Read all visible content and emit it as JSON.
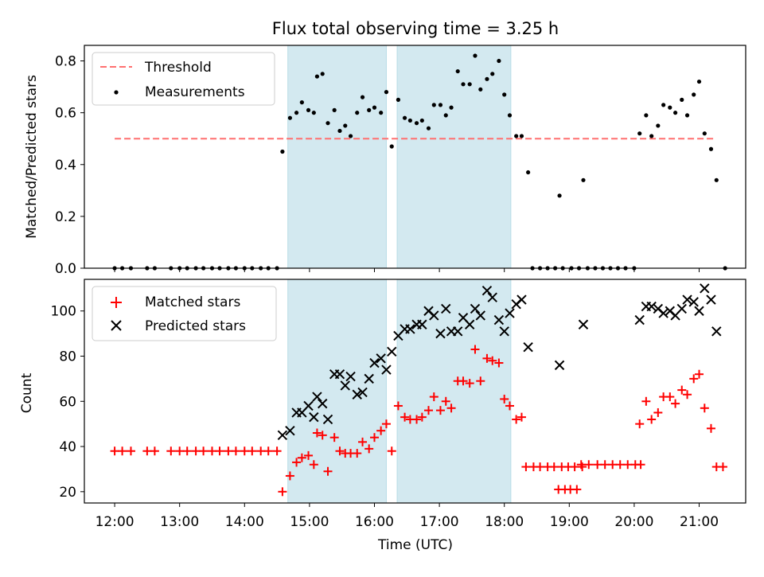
{
  "chart_data": [
    {
      "type": "scatter",
      "panel": "top",
      "title": "Flux total observing time = 3.25 h",
      "ylabel": "Matched/Predicted stars",
      "xlabel": "",
      "xlim": [
        "11:32",
        "21:43"
      ],
      "ylim": [
        0,
        0.86
      ],
      "yticks": [
        0.0,
        0.2,
        0.4,
        0.6,
        0.8
      ],
      "ytick_labels": [
        "0.0",
        "0.2",
        "0.4",
        "0.6",
        "0.8"
      ],
      "shaded_intervals": [
        [
          "14:40",
          "16:11"
        ],
        [
          "16:21",
          "18:06"
        ]
      ],
      "shade_color": "#d3e9f0",
      "legend": {
        "placement": "upper-left",
        "entries": [
          "Threshold",
          "Measurements"
        ]
      },
      "series": [
        {
          "name": "Threshold",
          "style": "dashed-line",
          "color": "#ff7070",
          "points": [
            [
              "12:00",
              0.5
            ],
            [
              "21:15",
              0.5
            ]
          ]
        },
        {
          "name": "Measurements",
          "style": "dot",
          "color": "#000000",
          "points": [
            [
              "12:00",
              0.0
            ],
            [
              "12:07",
              0.0
            ],
            [
              "12:15",
              0.0
            ],
            [
              "12:30",
              0.0
            ],
            [
              "12:37",
              0.0
            ],
            [
              "12:52",
              0.0
            ],
            [
              "13:00",
              0.0
            ],
            [
              "13:07",
              0.0
            ],
            [
              "13:15",
              0.0
            ],
            [
              "13:22",
              0.0
            ],
            [
              "13:30",
              0.0
            ],
            [
              "13:37",
              0.0
            ],
            [
              "13:45",
              0.0
            ],
            [
              "13:52",
              0.0
            ],
            [
              "14:00",
              0.0
            ],
            [
              "14:07",
              0.0
            ],
            [
              "14:15",
              0.0
            ],
            [
              "14:22",
              0.0
            ],
            [
              "14:30",
              0.0
            ],
            [
              "14:35",
              0.45
            ],
            [
              "14:42",
              0.58
            ],
            [
              "14:48",
              0.6
            ],
            [
              "14:53",
              0.64
            ],
            [
              "14:59",
              0.61
            ],
            [
              "15:04",
              0.6
            ],
            [
              "15:07",
              0.74
            ],
            [
              "15:12",
              0.75
            ],
            [
              "15:17",
              0.56
            ],
            [
              "15:23",
              0.61
            ],
            [
              "15:28",
              0.53
            ],
            [
              "15:33",
              0.55
            ],
            [
              "15:38",
              0.51
            ],
            [
              "15:44",
              0.6
            ],
            [
              "15:49",
              0.66
            ],
            [
              "15:55",
              0.61
            ],
            [
              "16:00",
              0.62
            ],
            [
              "16:06",
              0.6
            ],
            [
              "16:11",
              0.68
            ],
            [
              "16:16",
              0.47
            ],
            [
              "16:22",
              0.65
            ],
            [
              "16:28",
              0.58
            ],
            [
              "16:33",
              0.57
            ],
            [
              "16:39",
              0.56
            ],
            [
              "16:44",
              0.57
            ],
            [
              "16:50",
              0.54
            ],
            [
              "16:55",
              0.63
            ],
            [
              "17:01",
              0.63
            ],
            [
              "17:06",
              0.59
            ],
            [
              "17:11",
              0.62
            ],
            [
              "17:17",
              0.76
            ],
            [
              "17:22",
              0.71
            ],
            [
              "17:28",
              0.71
            ],
            [
              "17:33",
              0.82
            ],
            [
              "17:38",
              0.69
            ],
            [
              "17:44",
              0.73
            ],
            [
              "17:49",
              0.75
            ],
            [
              "17:55",
              0.8
            ],
            [
              "18:00",
              0.67
            ],
            [
              "18:05",
              0.59
            ],
            [
              "18:11",
              0.51
            ],
            [
              "18:16",
              0.51
            ],
            [
              "18:22",
              0.37
            ],
            [
              "18:26",
              0.0
            ],
            [
              "18:33",
              0.0
            ],
            [
              "18:40",
              0.0
            ],
            [
              "18:47",
              0.0
            ],
            [
              "18:54",
              0.0
            ],
            [
              "18:51",
              0.28
            ],
            [
              "19:02",
              0.0
            ],
            [
              "19:09",
              0.0
            ],
            [
              "19:17",
              0.0
            ],
            [
              "19:24",
              0.0
            ],
            [
              "19:31",
              0.0
            ],
            [
              "19:38",
              0.0
            ],
            [
              "19:45",
              0.0
            ],
            [
              "19:52",
              0.0
            ],
            [
              "20:00",
              0.0
            ],
            [
              "19:13",
              0.34
            ],
            [
              "20:05",
              0.52
            ],
            [
              "20:11",
              0.59
            ],
            [
              "20:16",
              0.51
            ],
            [
              "20:22",
              0.55
            ],
            [
              "20:27",
              0.63
            ],
            [
              "20:33",
              0.62
            ],
            [
              "20:38",
              0.6
            ],
            [
              "20:44",
              0.65
            ],
            [
              "20:49",
              0.59
            ],
            [
              "20:55",
              0.67
            ],
            [
              "21:00",
              0.72
            ],
            [
              "21:05",
              0.52
            ],
            [
              "21:11",
              0.46
            ],
            [
              "21:16",
              0.34
            ],
            [
              "21:24",
              0.0
            ]
          ]
        }
      ]
    },
    {
      "type": "scatter",
      "panel": "bottom",
      "title": "",
      "xlabel": "Time (UTC)",
      "ylabel": "Count",
      "xlim": [
        "11:32",
        "21:43"
      ],
      "ylim": [
        15,
        114
      ],
      "xticks": [
        "12:00",
        "13:00",
        "14:00",
        "15:00",
        "16:00",
        "17:00",
        "18:00",
        "19:00",
        "20:00",
        "21:00"
      ],
      "yticks": [
        20,
        40,
        60,
        80,
        100
      ],
      "shaded_intervals": [
        [
          "14:40",
          "16:11"
        ],
        [
          "16:21",
          "18:06"
        ]
      ],
      "shade_color": "#d3e9f0",
      "legend": {
        "placement": "upper-left",
        "entries": [
          "Matched stars",
          "Predicted stars"
        ]
      },
      "series": [
        {
          "name": "Matched stars",
          "marker": "plus",
          "color": "#ff0000",
          "points": [
            [
              "12:00",
              38
            ],
            [
              "12:07",
              38
            ],
            [
              "12:15",
              38
            ],
            [
              "12:30",
              38
            ],
            [
              "12:37",
              38
            ],
            [
              "12:52",
              38
            ],
            [
              "13:00",
              38
            ],
            [
              "13:07",
              38
            ],
            [
              "13:15",
              38
            ],
            [
              "13:22",
              38
            ],
            [
              "13:30",
              38
            ],
            [
              "13:37",
              38
            ],
            [
              "13:45",
              38
            ],
            [
              "13:52",
              38
            ],
            [
              "14:00",
              38
            ],
            [
              "14:07",
              38
            ],
            [
              "14:15",
              38
            ],
            [
              "14:22",
              38
            ],
            [
              "14:30",
              38
            ],
            [
              "14:35",
              20
            ],
            [
              "14:42",
              27
            ],
            [
              "14:48",
              33
            ],
            [
              "14:53",
              35
            ],
            [
              "14:59",
              36
            ],
            [
              "15:04",
              32
            ],
            [
              "15:07",
              46
            ],
            [
              "15:12",
              45
            ],
            [
              "15:17",
              29
            ],
            [
              "15:23",
              44
            ],
            [
              "15:28",
              38
            ],
            [
              "15:33",
              37
            ],
            [
              "15:38",
              37
            ],
            [
              "15:44",
              37
            ],
            [
              "15:49",
              42
            ],
            [
              "15:55",
              39
            ],
            [
              "16:00",
              44
            ],
            [
              "16:06",
              47
            ],
            [
              "16:11",
              50
            ],
            [
              "16:16",
              38
            ],
            [
              "16:22",
              58
            ],
            [
              "16:28",
              53
            ],
            [
              "16:33",
              52
            ],
            [
              "16:39",
              52
            ],
            [
              "16:44",
              53
            ],
            [
              "16:50",
              56
            ],
            [
              "16:55",
              62
            ],
            [
              "17:01",
              56
            ],
            [
              "17:06",
              60
            ],
            [
              "17:11",
              57
            ],
            [
              "17:17",
              69
            ],
            [
              "17:22",
              69
            ],
            [
              "17:28",
              68
            ],
            [
              "17:33",
              83
            ],
            [
              "17:38",
              69
            ],
            [
              "17:44",
              79
            ],
            [
              "17:49",
              78
            ],
            [
              "17:55",
              77
            ],
            [
              "18:00",
              61
            ],
            [
              "18:05",
              58
            ],
            [
              "18:11",
              52
            ],
            [
              "18:16",
              53
            ],
            [
              "18:20",
              31
            ],
            [
              "18:27",
              31
            ],
            [
              "18:33",
              31
            ],
            [
              "18:40",
              31
            ],
            [
              "18:46",
              31
            ],
            [
              "18:53",
              31
            ],
            [
              "18:59",
              31
            ],
            [
              "19:05",
              31
            ],
            [
              "19:12",
              31
            ],
            [
              "18:50",
              21
            ],
            [
              "18:56",
              21
            ],
            [
              "19:01",
              21
            ],
            [
              "19:07",
              21
            ],
            [
              "19:11",
              32
            ],
            [
              "19:18",
              32
            ],
            [
              "19:26",
              32
            ],
            [
              "19:33",
              32
            ],
            [
              "19:40",
              32
            ],
            [
              "19:47",
              32
            ],
            [
              "19:54",
              32
            ],
            [
              "20:01",
              32
            ],
            [
              "20:06",
              32
            ],
            [
              "20:05",
              50
            ],
            [
              "20:11",
              60
            ],
            [
              "20:16",
              52
            ],
            [
              "20:22",
              55
            ],
            [
              "20:27",
              62
            ],
            [
              "20:33",
              62
            ],
            [
              "20:38",
              59
            ],
            [
              "20:44",
              65
            ],
            [
              "20:49",
              63
            ],
            [
              "20:55",
              70
            ],
            [
              "21:00",
              72
            ],
            [
              "21:05",
              57
            ],
            [
              "21:11",
              48
            ],
            [
              "21:16",
              31
            ],
            [
              "21:22",
              31
            ]
          ]
        },
        {
          "name": "Predicted stars",
          "marker": "x",
          "color": "#000000",
          "points": [
            [
              "14:35",
              45
            ],
            [
              "14:42",
              47
            ],
            [
              "14:48",
              55
            ],
            [
              "14:53",
              55
            ],
            [
              "14:59",
              58
            ],
            [
              "15:04",
              53
            ],
            [
              "15:07",
              62
            ],
            [
              "15:12",
              59
            ],
            [
              "15:17",
              52
            ],
            [
              "15:23",
              72
            ],
            [
              "15:28",
              72
            ],
            [
              "15:33",
              67
            ],
            [
              "15:38",
              71
            ],
            [
              "15:44",
              63
            ],
            [
              "15:49",
              64
            ],
            [
              "15:55",
              70
            ],
            [
              "16:00",
              77
            ],
            [
              "16:06",
              79
            ],
            [
              "16:11",
              74
            ],
            [
              "16:16",
              82
            ],
            [
              "16:22",
              89
            ],
            [
              "16:28",
              92
            ],
            [
              "16:33",
              92
            ],
            [
              "16:39",
              94
            ],
            [
              "16:44",
              94
            ],
            [
              "16:50",
              100
            ],
            [
              "16:55",
              98
            ],
            [
              "17:01",
              90
            ],
            [
              "17:06",
              101
            ],
            [
              "17:11",
              91
            ],
            [
              "17:17",
              91
            ],
            [
              "17:22",
              97
            ],
            [
              "17:28",
              94
            ],
            [
              "17:33",
              101
            ],
            [
              "17:38",
              98
            ],
            [
              "17:44",
              109
            ],
            [
              "17:49",
              106
            ],
            [
              "17:55",
              96
            ],
            [
              "18:00",
              91
            ],
            [
              "18:05",
              99
            ],
            [
              "18:11",
              103
            ],
            [
              "18:16",
              105
            ],
            [
              "18:22",
              84
            ],
            [
              "18:51",
              76
            ],
            [
              "19:13",
              94
            ],
            [
              "20:05",
              96
            ],
            [
              "20:11",
              102
            ],
            [
              "20:16",
              102
            ],
            [
              "20:22",
              101
            ],
            [
              "20:27",
              99
            ],
            [
              "20:33",
              100
            ],
            [
              "20:38",
              98
            ],
            [
              "20:44",
              101
            ],
            [
              "20:49",
              105
            ],
            [
              "20:55",
              104
            ],
            [
              "21:00",
              100
            ],
            [
              "21:05",
              110
            ],
            [
              "21:11",
              105
            ],
            [
              "21:16",
              91
            ]
          ]
        }
      ]
    }
  ]
}
